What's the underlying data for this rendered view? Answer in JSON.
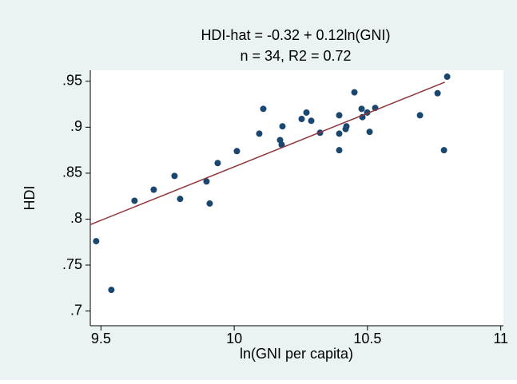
{
  "chart_data": {
    "type": "scatter",
    "title": "HDI-hat = -0.32 + 0.12ln(GNI)",
    "subtitle": "n = 34, R2 = 0.72",
    "x_label": "ln(GNI per capita)",
    "y_label": "HDI",
    "xlim": [
      9.46,
      11.01
    ],
    "ylim": [
      0.684,
      0.962
    ],
    "xticks": [
      9.5,
      10,
      10.5,
      11
    ],
    "yticks": [
      {
        "value": 0.7,
        "label": ".7"
      },
      {
        "value": 0.75,
        "label": ".75"
      },
      {
        "value": 0.8,
        "label": ".8"
      },
      {
        "value": 0.85,
        "label": ".85"
      },
      {
        "value": 0.9,
        "label": ".9"
      },
      {
        "value": 0.95,
        "label": ".95"
      }
    ],
    "series": [
      {
        "color": "#1a476f",
        "x": [
          9.482,
          9.539,
          9.626,
          9.698,
          9.776,
          9.797,
          9.896,
          9.908,
          9.938,
          10.01,
          10.094,
          10.109,
          10.172,
          10.178,
          10.181,
          10.253,
          10.271,
          10.289,
          10.322,
          10.394,
          10.394,
          10.394,
          10.418,
          10.421,
          10.451,
          10.478,
          10.481,
          10.499,
          10.508,
          10.529,
          10.697,
          10.763,
          10.787,
          10.799
        ],
        "values": [
          0.776,
          0.723,
          0.82,
          0.832,
          0.847,
          0.822,
          0.841,
          0.817,
          0.861,
          0.874,
          0.893,
          0.92,
          0.886,
          0.881,
          0.901,
          0.909,
          0.916,
          0.907,
          0.894,
          0.913,
          0.893,
          0.875,
          0.898,
          0.901,
          0.938,
          0.92,
          0.911,
          0.916,
          0.895,
          0.921,
          0.913,
          0.937,
          0.875,
          0.955
        ]
      },
      {
        "type": "line",
        "color": "#90353b",
        "x": [
          9.46,
          10.79
        ],
        "values": [
          0.794,
          0.949
        ]
      }
    ]
  }
}
